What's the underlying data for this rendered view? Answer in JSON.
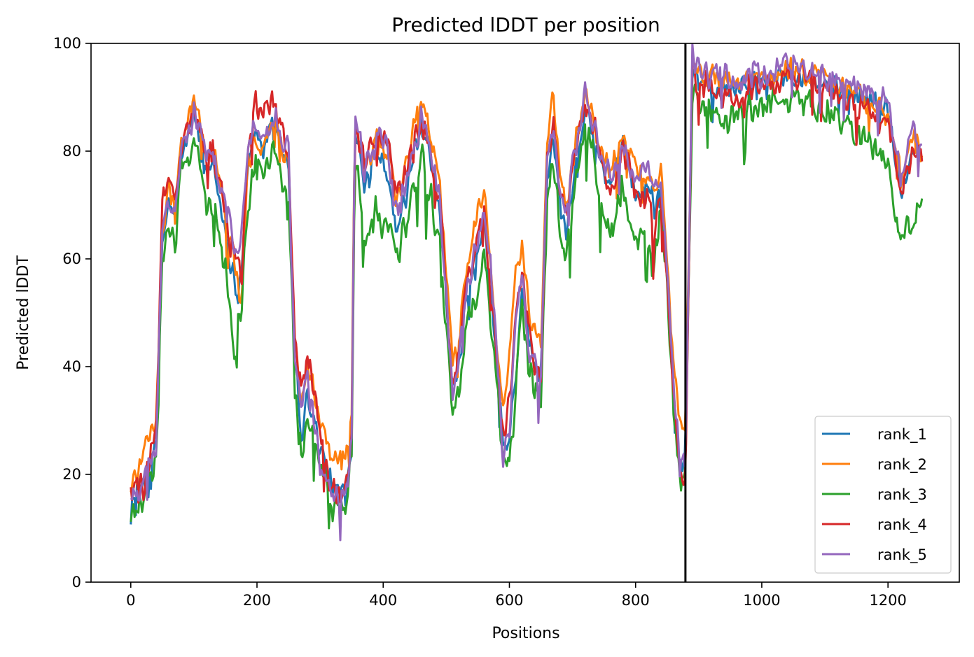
{
  "chart_data": {
    "type": "line",
    "title": "Predicted lDDT per position",
    "xlabel": "Positions",
    "ylabel": "Predicted lDDT",
    "xlim": [
      -63,
      1313
    ],
    "ylim": [
      0,
      100
    ],
    "xticks": [
      0,
      200,
      400,
      600,
      800,
      1000,
      1200
    ],
    "yticks": [
      0,
      20,
      40,
      60,
      80,
      100
    ],
    "grid": false,
    "legend_position": "lower right",
    "vertical_marker_x": 879,
    "series": [
      {
        "name": "rank_1",
        "color": "#1f77b4",
        "noise": 1.8,
        "offset": 0.0,
        "x": [
          0,
          20,
          40,
          50,
          60,
          70,
          80,
          95,
          100,
          110,
          120,
          130,
          150,
          165,
          175,
          185,
          200,
          210,
          220,
          230,
          240,
          250,
          260,
          270,
          280,
          300,
          320,
          340,
          350,
          355,
          370,
          390,
          400,
          410,
          420,
          440,
          450,
          460,
          470,
          490,
          510,
          520,
          530,
          540,
          560,
          570,
          580,
          590,
          600,
          610,
          620,
          630,
          640,
          650,
          660,
          670,
          680,
          690,
          700,
          720,
          740,
          760,
          780,
          800,
          820,
          830,
          840,
          850,
          860,
          870,
          879,
          890,
          900,
          950,
          1000,
          1050,
          1100,
          1150,
          1200,
          1220,
          1240,
          1255
        ],
        "y": [
          16,
          18,
          25,
          63,
          70,
          68,
          78,
          85,
          87,
          82,
          76,
          78,
          65,
          55,
          57,
          78,
          84,
          80,
          83,
          86,
          80,
          78,
          42,
          27,
          35,
          25,
          17,
          17,
          26,
          86,
          75,
          80,
          79,
          75,
          65,
          73,
          80,
          84,
          80,
          68,
          35,
          40,
          50,
          56,
          66,
          55,
          40,
          25,
          26,
          38,
          55,
          45,
          40,
          38,
          75,
          82,
          70,
          65,
          75,
          88,
          80,
          72,
          80,
          72,
          74,
          70,
          75,
          58,
          35,
          22,
          24,
          95,
          93,
          92,
          93,
          95,
          92,
          90,
          88,
          72,
          80,
          78
        ]
      },
      {
        "name": "rank_2",
        "color": "#ff7f0e",
        "noise": 1.7,
        "offset": 0.8,
        "x": [
          0,
          20,
          40,
          50,
          60,
          70,
          80,
          95,
          100,
          110,
          120,
          130,
          150,
          165,
          175,
          185,
          200,
          210,
          220,
          230,
          240,
          250,
          260,
          270,
          280,
          300,
          320,
          340,
          350,
          355,
          370,
          390,
          400,
          410,
          420,
          440,
          450,
          460,
          470,
          490,
          510,
          520,
          530,
          540,
          560,
          570,
          580,
          590,
          600,
          610,
          620,
          630,
          640,
          650,
          660,
          670,
          680,
          690,
          700,
          720,
          740,
          760,
          780,
          800,
          820,
          830,
          840,
          850,
          860,
          870,
          879,
          890,
          900,
          950,
          1000,
          1050,
          1100,
          1150,
          1200,
          1220,
          1240,
          1255
        ],
        "y": [
          17,
          22,
          30,
          65,
          72,
          70,
          80,
          88,
          89,
          84,
          78,
          80,
          68,
          58,
          50,
          76,
          82,
          80,
          83,
          85,
          80,
          78,
          43,
          32,
          40,
          30,
          22,
          22,
          30,
          85,
          76,
          81,
          80,
          77,
          70,
          78,
          84,
          89,
          85,
          72,
          40,
          45,
          55,
          62,
          72,
          60,
          45,
          32,
          40,
          58,
          62,
          50,
          45,
          42,
          82,
          89,
          75,
          68,
          78,
          90,
          82,
          75,
          82,
          75,
          75,
          72,
          75,
          60,
          40,
          30,
          28,
          96,
          94,
          92,
          93,
          95,
          92,
          90,
          86,
          75,
          82,
          78
        ]
      },
      {
        "name": "rank_3",
        "color": "#2ca02c",
        "noise": 2.4,
        "offset": -1.5,
        "x": [
          0,
          20,
          40,
          50,
          60,
          70,
          80,
          95,
          100,
          110,
          120,
          130,
          150,
          165,
          175,
          185,
          200,
          210,
          220,
          230,
          240,
          250,
          260,
          270,
          280,
          300,
          320,
          340,
          350,
          355,
          370,
          390,
          400,
          410,
          420,
          440,
          450,
          460,
          470,
          490,
          510,
          520,
          530,
          540,
          560,
          570,
          580,
          590,
          600,
          610,
          620,
          630,
          640,
          650,
          660,
          670,
          680,
          690,
          700,
          720,
          740,
          760,
          780,
          800,
          820,
          830,
          840,
          850,
          860,
          870,
          879,
          890,
          900,
          950,
          1000,
          1050,
          1100,
          1150,
          1200,
          1220,
          1240,
          1255
        ],
        "y": [
          14,
          17,
          24,
          60,
          66,
          65,
          77,
          83,
          84,
          78,
          72,
          72,
          58,
          45,
          52,
          72,
          80,
          77,
          80,
          82,
          76,
          72,
          38,
          24,
          33,
          24,
          16,
          16,
          25,
          82,
          65,
          70,
          68,
          70,
          62,
          70,
          76,
          80,
          76,
          64,
          33,
          38,
          47,
          52,
          63,
          50,
          40,
          23,
          24,
          36,
          52,
          42,
          37,
          36,
          72,
          80,
          66,
          62,
          72,
          86,
          76,
          65,
          76,
          65,
          65,
          60,
          70,
          55,
          33,
          20,
          22,
          93,
          90,
          88,
          90,
          92,
          88,
          85,
          80,
          65,
          68,
          74
        ]
      },
      {
        "name": "rank_4",
        "color": "#d62728",
        "noise": 2.0,
        "offset": 0.5,
        "x": [
          0,
          20,
          40,
          50,
          60,
          70,
          80,
          95,
          100,
          110,
          120,
          130,
          150,
          165,
          175,
          185,
          200,
          210,
          220,
          230,
          240,
          250,
          260,
          270,
          280,
          300,
          320,
          340,
          350,
          355,
          370,
          390,
          400,
          410,
          420,
          440,
          450,
          460,
          470,
          490,
          510,
          520,
          530,
          540,
          560,
          570,
          580,
          590,
          600,
          610,
          620,
          630,
          640,
          650,
          660,
          670,
          680,
          690,
          700,
          720,
          740,
          760,
          780,
          800,
          820,
          830,
          840,
          850,
          860,
          870,
          879,
          890,
          900,
          950,
          1000,
          1050,
          1100,
          1150,
          1200,
          1220,
          1240,
          1255
        ],
        "y": [
          18,
          17,
          26,
          70,
          76,
          72,
          80,
          86,
          86,
          83,
          78,
          80,
          68,
          60,
          55,
          80,
          90,
          86,
          88,
          88,
          84,
          80,
          44,
          35,
          42,
          28,
          16,
          16,
          27,
          86,
          78,
          82,
          82,
          80,
          72,
          76,
          82,
          85,
          82,
          70,
          38,
          42,
          52,
          58,
          68,
          55,
          42,
          26,
          32,
          50,
          58,
          46,
          40,
          38,
          80,
          85,
          72,
          68,
          76,
          89,
          82,
          70,
          80,
          72,
          70,
          65,
          72,
          55,
          35,
          19,
          20,
          95,
          92,
          90,
          92,
          94,
          91,
          88,
          85,
          72,
          80,
          78
        ]
      },
      {
        "name": "rank_5",
        "color": "#9467bd",
        "noise": 1.9,
        "offset": 0.2,
        "x": [
          0,
          20,
          40,
          50,
          60,
          70,
          80,
          95,
          100,
          110,
          120,
          130,
          150,
          165,
          175,
          185,
          200,
          210,
          220,
          230,
          240,
          250,
          260,
          270,
          280,
          300,
          320,
          340,
          350,
          355,
          370,
          390,
          400,
          410,
          420,
          440,
          450,
          460,
          470,
          490,
          510,
          520,
          530,
          540,
          560,
          570,
          580,
          590,
          600,
          610,
          620,
          630,
          640,
          650,
          660,
          670,
          680,
          690,
          700,
          720,
          740,
          760,
          780,
          800,
          820,
          830,
          840,
          850,
          860,
          870,
          879,
          890,
          900,
          950,
          1000,
          1050,
          1100,
          1150,
          1200,
          1220,
          1240,
          1255
        ],
        "y": [
          16,
          18,
          24,
          64,
          70,
          68,
          79,
          85,
          88,
          83,
          79,
          80,
          70,
          62,
          64,
          80,
          86,
          82,
          84,
          86,
          80,
          80,
          42,
          32,
          38,
          22,
          15,
          15,
          25,
          88,
          76,
          82,
          82,
          78,
          68,
          75,
          81,
          86,
          82,
          70,
          35,
          42,
          52,
          58,
          68,
          58,
          42,
          24,
          28,
          48,
          56,
          44,
          40,
          38,
          78,
          85,
          72,
          68,
          78,
          90,
          82,
          74,
          82,
          74,
          76,
          72,
          76,
          58,
          36,
          22,
          24,
          97,
          95,
          93,
          94,
          96,
          93,
          92,
          90,
          75,
          84,
          80
        ]
      }
    ]
  }
}
